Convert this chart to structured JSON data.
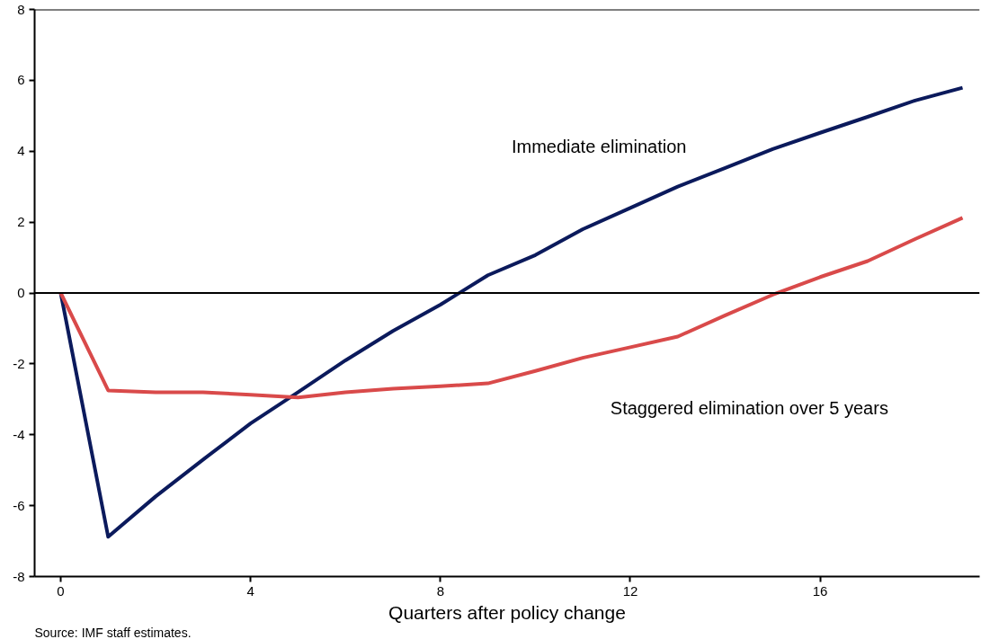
{
  "chart_data": {
    "type": "line",
    "xlabel": "Quarters after policy change",
    "x": [
      0,
      1,
      2,
      3,
      4,
      5,
      6,
      7,
      8,
      9,
      10,
      11,
      12,
      13,
      14,
      15,
      16,
      17,
      18,
      19
    ],
    "series": [
      {
        "name": "Immediate elimination",
        "color": "#0b1a5c",
        "values": [
          0,
          -6.88,
          -5.74,
          -4.7,
          -3.68,
          -2.8,
          -1.9,
          -1.07,
          -0.33,
          0.5,
          1.07,
          1.8,
          2.4,
          3.0,
          3.53,
          4.06,
          4.52,
          4.97,
          5.43,
          5.79
        ]
      },
      {
        "name": "Staggered elimination over 5 years",
        "color": "#d94a4a",
        "values": [
          0,
          -2.75,
          -2.8,
          -2.8,
          -2.87,
          -2.95,
          -2.8,
          -2.7,
          -2.63,
          -2.55,
          -2.2,
          -1.83,
          -1.53,
          -1.23,
          -0.63,
          -0.05,
          0.45,
          0.9,
          1.52,
          2.12
        ]
      }
    ],
    "annotations": [
      "Source: IMF staff estimates."
    ],
    "xlim": [
      -0.55,
      19.36
    ],
    "ylim": [
      -8,
      8
    ],
    "xticks": [
      0,
      4,
      8,
      12,
      16
    ],
    "yticks": [
      -8,
      -6,
      -4,
      -2,
      0,
      2,
      4,
      6,
      8
    ],
    "ref_lines": [
      {
        "axis": "y",
        "value": 0,
        "color": "#000000"
      }
    ],
    "grid": false,
    "legend": false,
    "marker": "none",
    "line_style": "solid"
  }
}
